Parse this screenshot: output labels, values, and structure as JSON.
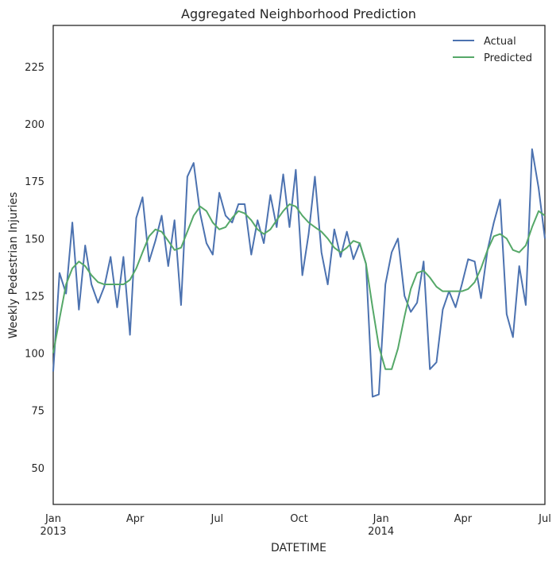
{
  "chart_data": {
    "type": "line",
    "title": "Aggregated Neighborhood Prediction",
    "xlabel": "DATETIME",
    "ylabel": "Weekly Pedestrian Injuries",
    "x": [
      0,
      0.23,
      0.47,
      0.7,
      0.94,
      1.17,
      1.4,
      1.64,
      1.87,
      2.1,
      2.34,
      2.57,
      2.81,
      3.04,
      3.27,
      3.51,
      3.74,
      3.97,
      4.21,
      4.44,
      4.68,
      4.91,
      5.14,
      5.38,
      5.61,
      5.84,
      6.08,
      6.31,
      6.55,
      6.78,
      7.01,
      7.25,
      7.48,
      7.71,
      7.95,
      8.18,
      8.42,
      8.65,
      8.88,
      9.12,
      9.35,
      9.58,
      9.82,
      10.05,
      10.29,
      10.52,
      10.75,
      10.99,
      11.22,
      11.45,
      11.69,
      11.92,
      12.16,
      12.39,
      12.62,
      12.86,
      13.09,
      13.32,
      13.56,
      13.79,
      14.03,
      14.26,
      14.49,
      14.73,
      14.96,
      15.19,
      15.43,
      15.66,
      15.9,
      16.13,
      16.36,
      16.6,
      16.83,
      17.06,
      17.3,
      17.53,
      17.77,
      18.0
    ],
    "series": [
      {
        "name": "Actual",
        "color": "#4c72b0",
        "values": [
          92,
          135,
          126,
          157,
          119,
          147,
          130,
          122,
          129,
          142,
          120,
          142,
          108,
          159,
          168,
          140,
          149,
          160,
          138,
          158,
          121,
          177,
          183,
          161,
          148,
          143,
          170,
          160,
          157,
          165,
          165,
          143,
          158,
          148,
          169,
          155,
          178,
          155,
          180,
          134,
          152,
          177,
          144,
          130,
          154,
          142,
          153,
          141,
          148,
          139,
          81,
          82,
          130,
          144,
          150,
          125,
          118,
          122,
          140,
          93,
          96,
          119,
          127,
          120,
          130,
          141,
          140,
          124,
          145,
          157,
          167,
          117,
          107,
          138,
          121,
          189,
          172,
          150
        ]
      },
      {
        "name": "Predicted",
        "color": "#55a868",
        "values": [
          100,
          115,
          130,
          137,
          140,
          138,
          134,
          131,
          130,
          130,
          130,
          130,
          132,
          137,
          144,
          151,
          154,
          153,
          149,
          145,
          146,
          153,
          160,
          164,
          162,
          157,
          154,
          155,
          159,
          162,
          161,
          158,
          154,
          152,
          154,
          158,
          162,
          165,
          164,
          160,
          157,
          155,
          153,
          150,
          146,
          144,
          146,
          149,
          148,
          139,
          120,
          103,
          93,
          93,
          102,
          116,
          128,
          135,
          136,
          133,
          129,
          127,
          127,
          127,
          127,
          128,
          131,
          137,
          145,
          151,
          152,
          150,
          145,
          144,
          147,
          155,
          162,
          160
        ]
      }
    ],
    "xlim": [
      0,
      18
    ],
    "xticks": [
      {
        "value": 0,
        "label": "Jan\n2013"
      },
      {
        "value": 3,
        "label": "Apr"
      },
      {
        "value": 6,
        "label": "Jul"
      },
      {
        "value": 9,
        "label": "Oct"
      },
      {
        "value": 12,
        "label": "Jan\n2014"
      },
      {
        "value": 15,
        "label": "Apr"
      },
      {
        "value": 18,
        "label": "Jul"
      }
    ],
    "ylim": [
      34,
      243
    ],
    "yticks": [
      50,
      75,
      100,
      125,
      150,
      175,
      200,
      225
    ],
    "grid": false,
    "legend": "upper right"
  }
}
